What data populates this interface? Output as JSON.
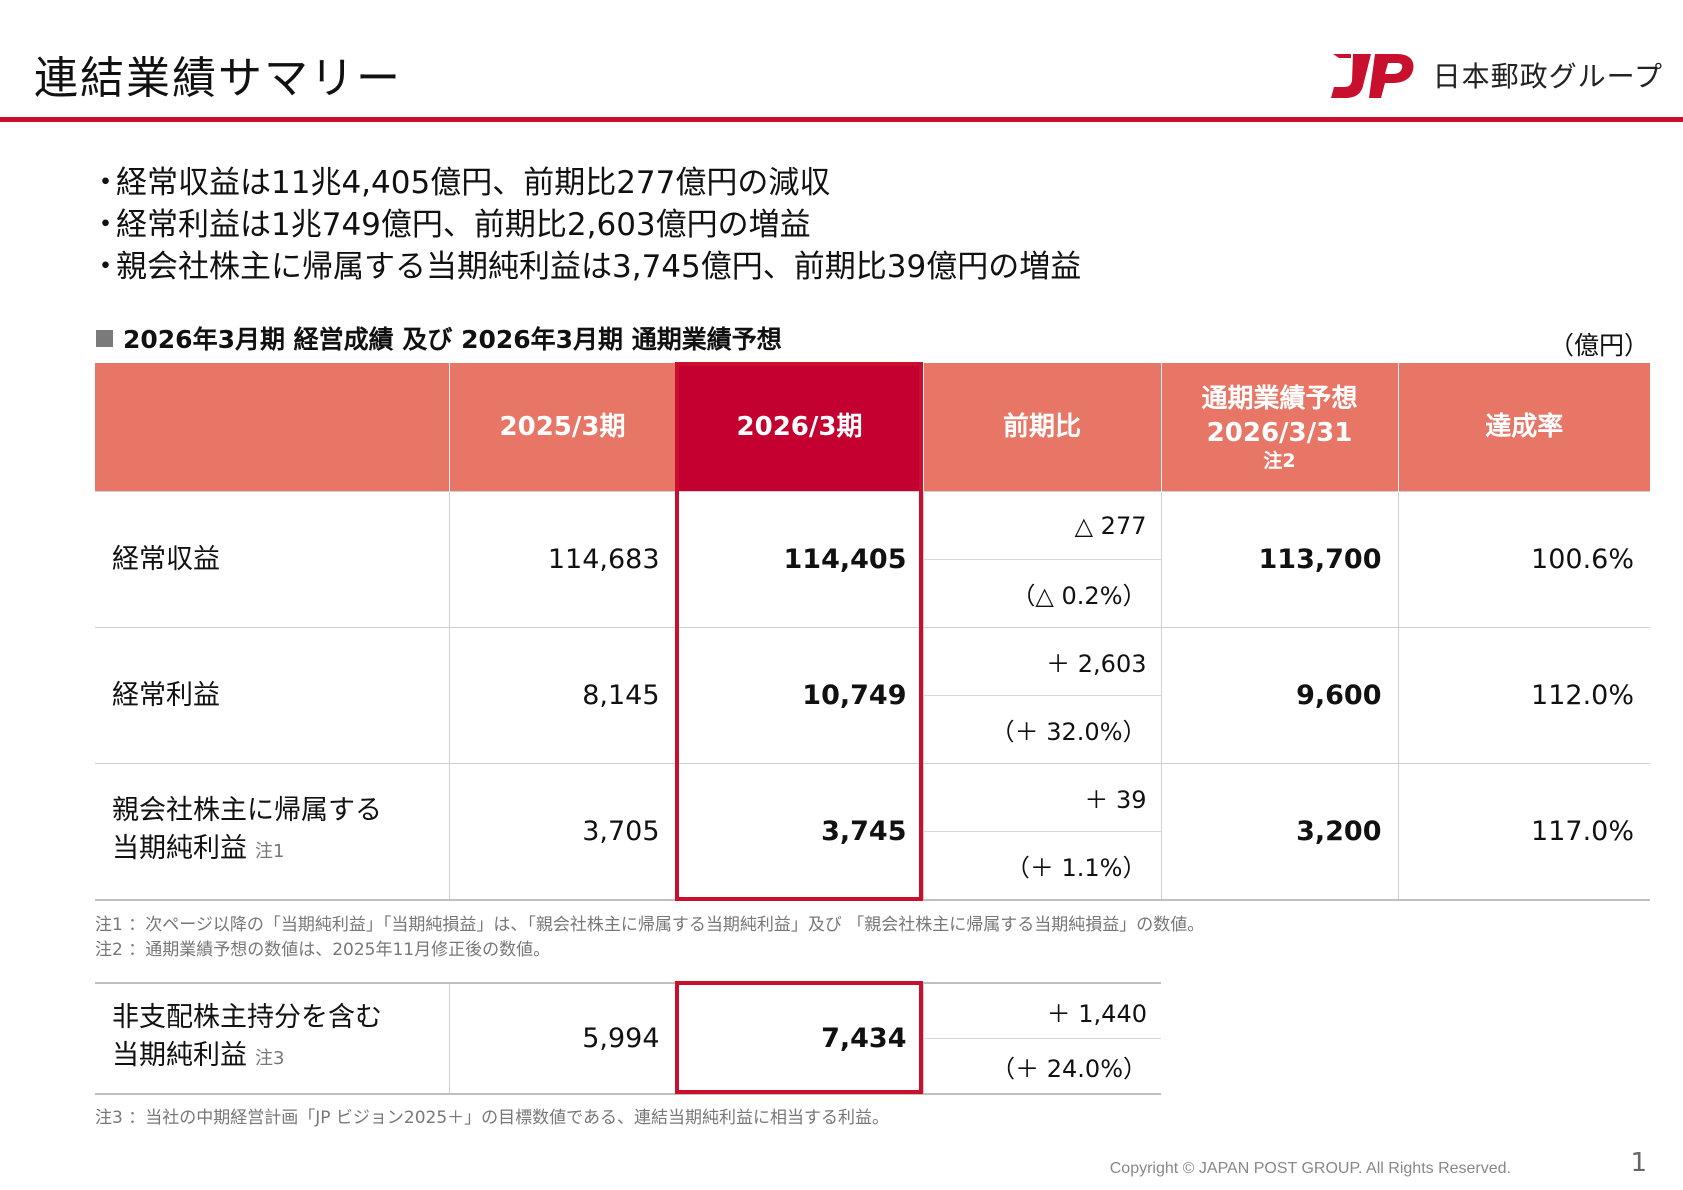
{
  "header": {
    "title": "連結業績サマリー",
    "logo_text": "日本郵政グループ",
    "brand_color": "#c8102e"
  },
  "bullets": [
    "経常収益は11兆4,405億円、前期比277億円の減収",
    "経常利益は1兆749億円、前期比2,603億円の増益",
    "親会社株主に帰属する当期純利益は3,745億円、前期比39億円の増益"
  ],
  "bullet_marker": "・",
  "section": {
    "title": "2026年3月期 経営成績 及び 2026年3月期 通期業績予想",
    "unit": "（億円）"
  },
  "table": {
    "headers": {
      "prev": "2025/3期",
      "curr": "2026/3期",
      "yoy": "前期比",
      "forecast_l1": "通期業績予想",
      "forecast_l2": "2026/3/31",
      "forecast_note": "注2",
      "achievement": "達成率"
    },
    "rows": [
      {
        "label_l1": "経常収益",
        "label_l2": "",
        "note": "",
        "prev": "114,683",
        "curr": "114,405",
        "yoy_abs": "△ 277",
        "yoy_pct": "（△ 0.2%）",
        "forecast": "113,700",
        "achievement": "100.6%"
      },
      {
        "label_l1": "経常利益",
        "label_l2": "",
        "note": "",
        "prev": "8,145",
        "curr": "10,749",
        "yoy_abs": "＋ 2,603",
        "yoy_pct": "（＋ 32.0%）",
        "forecast": "9,600",
        "achievement": "112.0%"
      },
      {
        "label_l1": "親会社株主に帰属する",
        "label_l2": "当期純利益",
        "note": "注1",
        "prev": "3,705",
        "curr": "3,745",
        "yoy_abs": "＋ 39",
        "yoy_pct": "（＋ 1.1%）",
        "forecast": "3,200",
        "achievement": "117.0%"
      }
    ]
  },
  "footnotes": {
    "n1": "注1 ：次ページ以降の「当期純利益」「当期純損益」は、「親会社株主に帰属する当期純利益」及び 「親会社株主に帰属する当期純損益」の数値。",
    "n2": "注2 ：通期業績予想の数値は、2025年11月修正後の数値。",
    "n3": "注3 ：当社の中期経営計画「JP ビジョン2025＋」の目標数値である、連結当期純利益に相当する利益。"
  },
  "table2": {
    "label_l1": "非支配株主持分を含む",
    "label_l2": "当期純利益",
    "note": "注3",
    "prev": "5,994",
    "curr": "7,434",
    "yoy_abs": "＋ 1,440",
    "yoy_pct": "（＋ 24.0%）"
  },
  "footer": {
    "copyright": "Copyright ©  JAPAN POST GROUP. All Rights Reserved.",
    "page": "1"
  },
  "colors": {
    "header_fill": "#e87667",
    "highlight_fill": "#c3002f"
  }
}
